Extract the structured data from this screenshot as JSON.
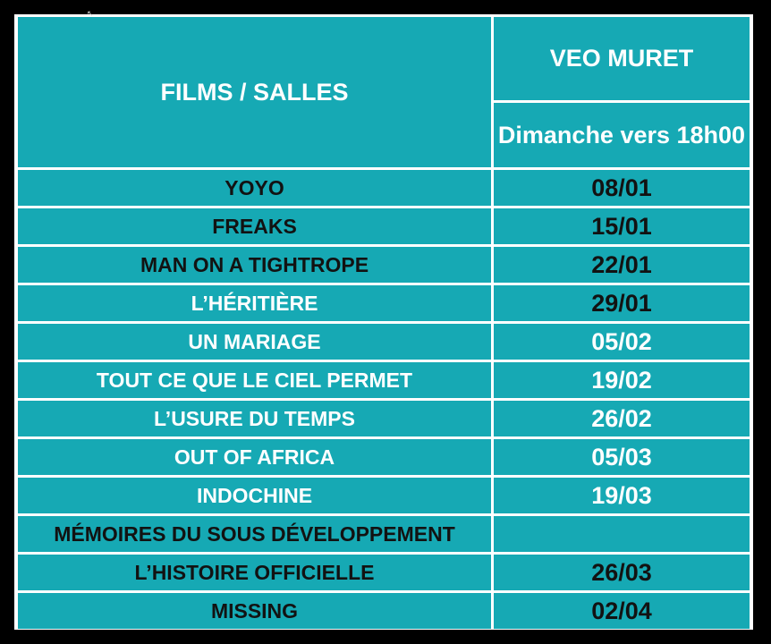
{
  "header": {
    "films_label": "FILMS / SALLES",
    "venue": "VEO MURET",
    "schedule": "Dimanche vers 18h00"
  },
  "rows": [
    {
      "film": "YOYO",
      "date": "08/01",
      "film_light": false,
      "date_light": false
    },
    {
      "film": "FREAKS",
      "date": "15/01",
      "film_light": false,
      "date_light": false
    },
    {
      "film": "MAN ON A TIGHTROPE",
      "date": "22/01",
      "film_light": false,
      "date_light": false
    },
    {
      "film": "L’HÉRITIÈRE",
      "date": "29/01",
      "film_light": true,
      "date_light": false
    },
    {
      "film": "UN MARIAGE",
      "date": "05/02",
      "film_light": true,
      "date_light": true
    },
    {
      "film": "TOUT CE QUE LE CIEL PERMET",
      "date": "19/02",
      "film_light": true,
      "date_light": true
    },
    {
      "film": "L’USURE DU TEMPS",
      "date": "26/02",
      "film_light": true,
      "date_light": true
    },
    {
      "film": "OUT OF AFRICA",
      "date": "05/03",
      "film_light": true,
      "date_light": true
    },
    {
      "film": "INDOCHINE",
      "date": "19/03",
      "film_light": true,
      "date_light": true
    },
    {
      "film": "MÉMOIRES DU SOUS DÉVELOPPEMENT",
      "date": "",
      "film_light": false,
      "date_light": false
    },
    {
      "film": "L’HISTOIRE OFFICIELLE",
      "date": "26/03",
      "film_light": false,
      "date_light": false
    },
    {
      "film": "MISSING",
      "date": "02/04",
      "film_light": false,
      "date_light": false
    }
  ],
  "colors": {
    "cell": "#16a9b4",
    "dark_text": "#121212",
    "light_text": "#ffffff",
    "grid": "#ffffff",
    "background": "#000000"
  },
  "icons": {
    "cursor": "mouse-cursor-icon"
  }
}
